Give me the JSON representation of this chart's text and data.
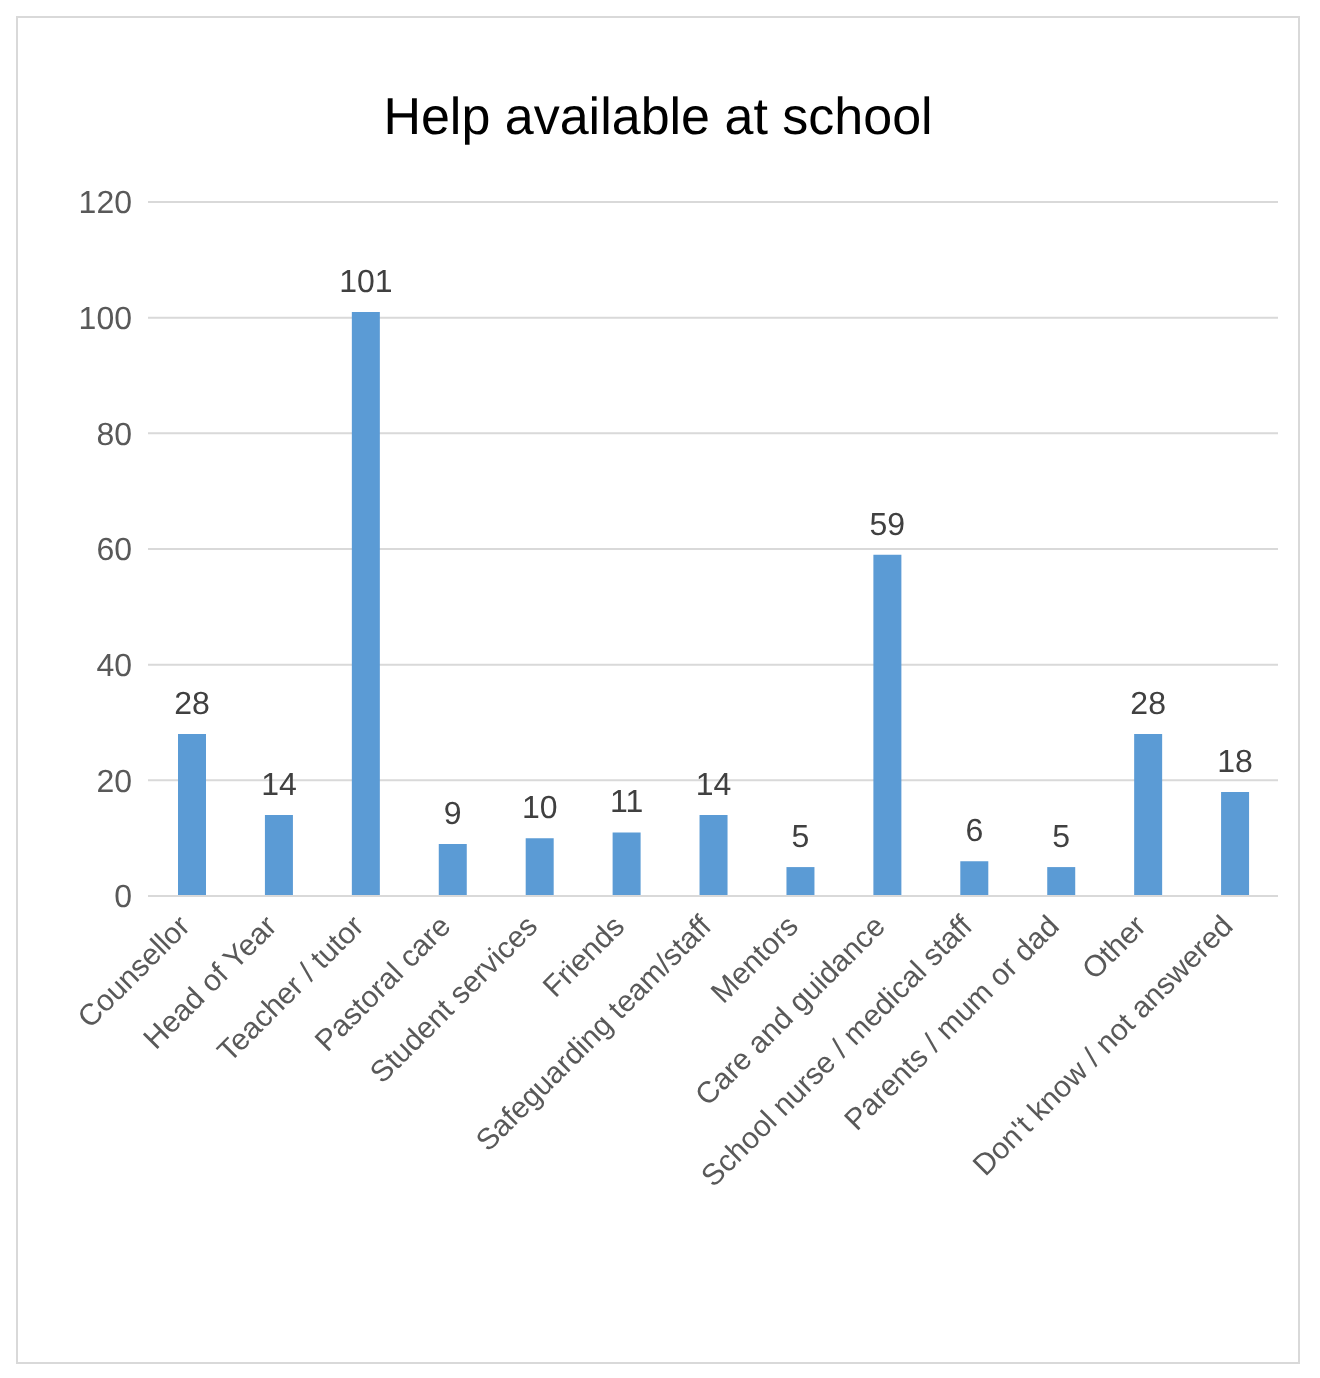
{
  "chart_data": {
    "type": "bar",
    "title": "Help available at school",
    "categories": [
      "Counsellor",
      "Head of Year",
      "Teacher / tutor",
      "Pastoral care",
      "Student services",
      "Friends",
      "Safeguarding team/staff",
      "Mentors",
      "Care and guidance",
      "School nurse / medical staff",
      "Parents / mum or dad",
      "Other",
      "Don't know / not answered"
    ],
    "values": [
      28,
      14,
      101,
      9,
      10,
      11,
      14,
      5,
      59,
      6,
      5,
      28,
      18
    ],
    "color": "#5b9bd5",
    "ylim": [
      0,
      120
    ],
    "yticks": [
      0,
      20,
      40,
      60,
      80,
      100,
      120
    ],
    "grid": "y",
    "data_labels": true
  }
}
